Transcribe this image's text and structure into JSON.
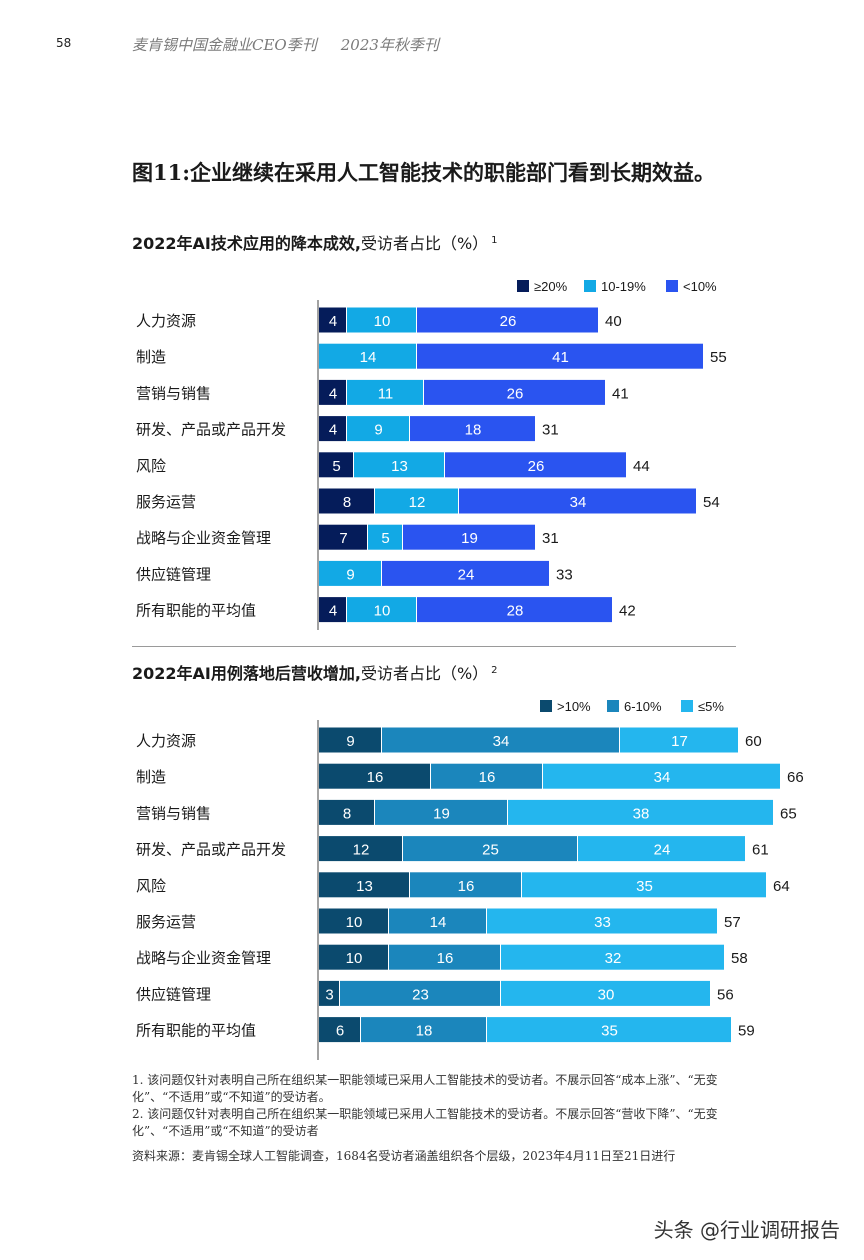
{
  "header": {
    "page_number": "58",
    "publication": "麦肯锡中国金融业CEO季刊",
    "issue": "2023年秋季刊"
  },
  "figure_title": "图11:企业继续在采用人工智能技术的职能部门看到长期效益。",
  "chart_data": [
    {
      "type": "bar",
      "stacked": true,
      "orientation": "horizontal",
      "title_bold": "2022年AI技术应用的降本成效,",
      "title_rest": "受访者占比（%）",
      "title_footnote": "1",
      "legend_position": "top-right",
      "categories": [
        "人力资源",
        "制造",
        "营销与销售",
        "研发、产品或产品开发",
        "风险",
        "服务运营",
        "战略与企业资金管理",
        "供应链管理",
        "所有职能的平均值"
      ],
      "series": [
        {
          "name": "≥20%",
          "color": "#051c5a",
          "values": [
            4,
            0,
            4,
            4,
            5,
            8,
            7,
            0,
            4
          ]
        },
        {
          "name": "10-19%",
          "color": "#12a9e5",
          "values": [
            10,
            14,
            11,
            9,
            13,
            12,
            5,
            9,
            10
          ]
        },
        {
          "name": "<10%",
          "color": "#2a54f0",
          "values": [
            26,
            41,
            26,
            18,
            26,
            34,
            19,
            24,
            28
          ]
        }
      ],
      "totals": [
        40,
        55,
        41,
        31,
        44,
        54,
        31,
        33,
        42
      ]
    },
    {
      "type": "bar",
      "stacked": true,
      "orientation": "horizontal",
      "title_bold": "2022年AI用例落地后营收增加,",
      "title_rest": "受访者占比（%）",
      "title_footnote": "2",
      "legend_position": "top-right",
      "categories": [
        "人力资源",
        "制造",
        "营销与销售",
        "研发、产品或产品开发",
        "风险",
        "服务运营",
        "战略与企业资金管理",
        "供应链管理",
        "所有职能的平均值"
      ],
      "series": [
        {
          "name": ">10%",
          "color": "#0b4a6e",
          "values": [
            9,
            16,
            8,
            12,
            13,
            10,
            10,
            3,
            6
          ]
        },
        {
          "name": "6-10%",
          "color": "#1b86bc",
          "values": [
            34,
            16,
            19,
            25,
            16,
            14,
            16,
            23,
            18
          ]
        },
        {
          "name": "≤5%",
          "color": "#24b6ee",
          "values": [
            17,
            34,
            38,
            24,
            35,
            33,
            32,
            30,
            35
          ]
        }
      ],
      "totals": [
        60,
        66,
        65,
        61,
        64,
        57,
        58,
        56,
        59
      ]
    }
  ],
  "footnotes": {
    "note1": "1. 该问题仅针对表明自己所在组织某一职能领域已采用人工智能技术的受访者。不展示回答“成本上涨”、“无变化”、“不适用”或“不知道”的受访者。",
    "note2": "2. 该问题仅针对表明自己所在组织某一职能领域已采用人工智能技术的受访者。不展示回答“营收下降”、“无变化”、“不适用”或“不知道”的受访者",
    "source": "资料来源：麦肯锡全球人工智能调查，1684名受访者涵盖组织各个层级，2023年4月11日至21日进行"
  },
  "watermark": "头条 @行业调研报告"
}
